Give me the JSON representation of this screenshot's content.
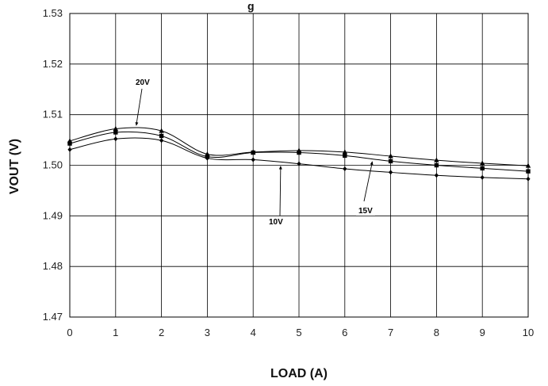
{
  "chart_data": {
    "type": "line",
    "title": "g",
    "xlabel": "LOAD (A)",
    "ylabel": "VOUT (V)",
    "xlim": [
      0,
      10
    ],
    "ylim": [
      1.47,
      1.53
    ],
    "x_ticks": [
      "0",
      "1",
      "2",
      "3",
      "4",
      "5",
      "6",
      "7",
      "8",
      "9",
      "10"
    ],
    "y_ticks": [
      "1.47",
      "1.48",
      "1.49",
      "1.50",
      "1.51",
      "1.52",
      "1.53"
    ],
    "grid": true,
    "x": [
      0,
      1,
      2,
      3,
      4,
      5,
      6,
      7,
      8,
      9,
      10
    ],
    "series": [
      {
        "name": "20V",
        "marker": "triangle",
        "values": [
          1.5048,
          1.5072,
          1.5068,
          1.5022,
          1.5026,
          1.5029,
          1.5026,
          1.5018,
          1.501,
          1.5004,
          1.4999
        ]
      },
      {
        "name": "15V",
        "marker": "square",
        "values": [
          1.5043,
          1.5065,
          1.5058,
          1.5017,
          1.5025,
          1.5025,
          1.5019,
          1.5008,
          1.5,
          1.4994,
          1.4988
        ]
      },
      {
        "name": "10V",
        "marker": "diamond",
        "values": [
          1.5031,
          1.5052,
          1.5049,
          1.5014,
          1.5011,
          1.5003,
          1.4993,
          1.4986,
          1.498,
          1.4976,
          1.4973
        ]
      }
    ],
    "annotations": [
      {
        "text": "20V",
        "target_x": 1.45,
        "target_y": 1.5073
      },
      {
        "text": "10V",
        "target_x": 4.6,
        "target_y": 1.5004
      },
      {
        "text": "15V",
        "target_x": 6.6,
        "target_y": 1.5013
      }
    ]
  }
}
